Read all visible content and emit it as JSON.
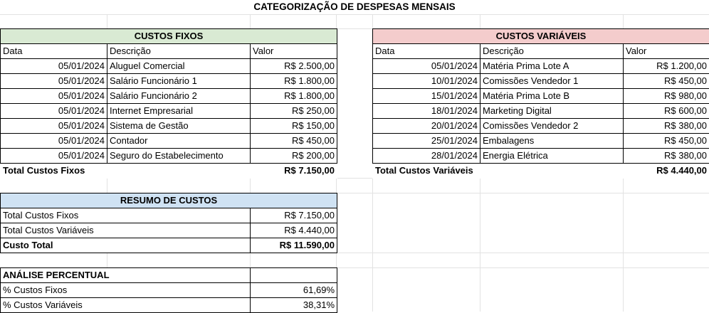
{
  "title": "CATEGORIZAÇÃO DE DESPESAS MENSAIS",
  "fixos": {
    "header": "CUSTOS FIXOS",
    "columns": [
      "Data",
      "Descrição",
      "Valor"
    ],
    "rows": [
      [
        "05/01/2024",
        "Aluguel Comercial",
        "R$ 2.500,00"
      ],
      [
        "05/01/2024",
        "Salário Funcionário 1",
        "R$ 1.800,00"
      ],
      [
        "05/01/2024",
        "Salário Funcionário 2",
        "R$ 1.800,00"
      ],
      [
        "05/01/2024",
        "Internet Empresarial",
        "R$ 250,00"
      ],
      [
        "05/01/2024",
        "Sistema de Gestão",
        "R$ 150,00"
      ],
      [
        "05/01/2024",
        "Contador",
        "R$ 450,00"
      ],
      [
        "05/01/2024",
        "Seguro do Estabelecimento",
        "R$ 200,00"
      ]
    ],
    "total_label": "Total Custos Fixos",
    "total_value": "R$ 7.150,00"
  },
  "variaveis": {
    "header": "CUSTOS VARIÁVEIS",
    "columns": [
      "Data",
      "Descrição",
      "Valor"
    ],
    "rows": [
      [
        "05/01/2024",
        "Matéria Prima Lote A",
        "R$ 1.200,00"
      ],
      [
        "10/01/2024",
        "Comissões Vendedor 1",
        "R$ 450,00"
      ],
      [
        "15/01/2024",
        "Matéria Prima Lote B",
        "R$ 980,00"
      ],
      [
        "18/01/2024",
        "Marketing Digital",
        "R$ 600,00"
      ],
      [
        "20/01/2024",
        "Comissões Vendedor 2",
        "R$ 380,00"
      ],
      [
        "25/01/2024",
        "Embalagens",
        "R$ 450,00"
      ],
      [
        "28/01/2024",
        "Energia Elétrica",
        "R$ 380,00"
      ]
    ],
    "total_label": "Total Custos Variáveis",
    "total_value": "R$ 4.440,00"
  },
  "resumo": {
    "header": "RESUMO DE CUSTOS",
    "rows": [
      [
        "Total Custos Fixos",
        "R$ 7.150,00"
      ],
      [
        "Total Custos Variáveis",
        "R$ 4.440,00"
      ]
    ],
    "total_label": "Custo Total",
    "total_value": "R$ 11.590,00"
  },
  "analise": {
    "header": "ANÁLISE PERCENTUAL",
    "rows": [
      [
        "% Custos Fixos",
        "61,69%"
      ],
      [
        "% Custos Variáveis",
        "38,31%"
      ]
    ]
  }
}
